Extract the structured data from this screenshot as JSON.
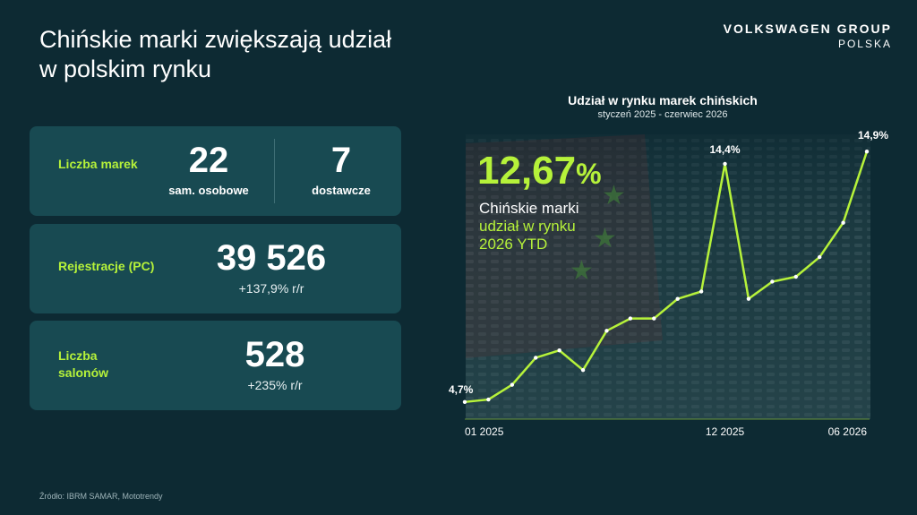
{
  "header": {
    "title_line1": "Chińskie marki zwiększają udział",
    "title_line2": "w polskim rynku",
    "brand_line1": "VOLKSWAGEN GROUP",
    "brand_line2": "POLSKA"
  },
  "cards": {
    "brands": {
      "label": "Liczba marek",
      "passenger_value": "22",
      "passenger_label": "sam. osobowe",
      "delivery_value": "7",
      "delivery_label": "dostawcze"
    },
    "registrations": {
      "label": "Rejestracje (PC)",
      "value": "39 526",
      "change": "+137,9% r/r"
    },
    "dealers": {
      "label": "Liczba salonów",
      "value": "528",
      "change": "+235% r/r"
    }
  },
  "kpi": {
    "value": "12,67",
    "unit": "%",
    "line1": "Chińskie marki",
    "line2": "udział w rynku",
    "line3": "2026 YTD"
  },
  "source": "Źródło: IBRM SAMAR, Mototrendy",
  "colors": {
    "background": "#0d2a33",
    "card": "#184a52",
    "accent": "#b6f23a"
  },
  "chart_data": {
    "type": "line",
    "title": "Udział w rynku marek chińskich",
    "subtitle": "styczeń 2025 - czerwiec 2026",
    "x_tick_labels": [
      "01 2025",
      "12 2025",
      "06 2026"
    ],
    "x_tick_indices": [
      0,
      11,
      17
    ],
    "values": [
      4.7,
      4.8,
      5.4,
      6.5,
      6.8,
      6.0,
      7.6,
      8.1,
      8.1,
      8.9,
      9.2,
      14.4,
      8.9,
      9.6,
      9.8,
      10.6,
      12.0,
      14.9
    ],
    "data_labels": [
      {
        "index": 0,
        "text": "4,7%"
      },
      {
        "index": 11,
        "text": "14,4%"
      },
      {
        "index": 17,
        "text": "14,9%"
      }
    ],
    "ylim": [
      4.0,
      15.6
    ],
    "grid": false,
    "legend": "none"
  }
}
